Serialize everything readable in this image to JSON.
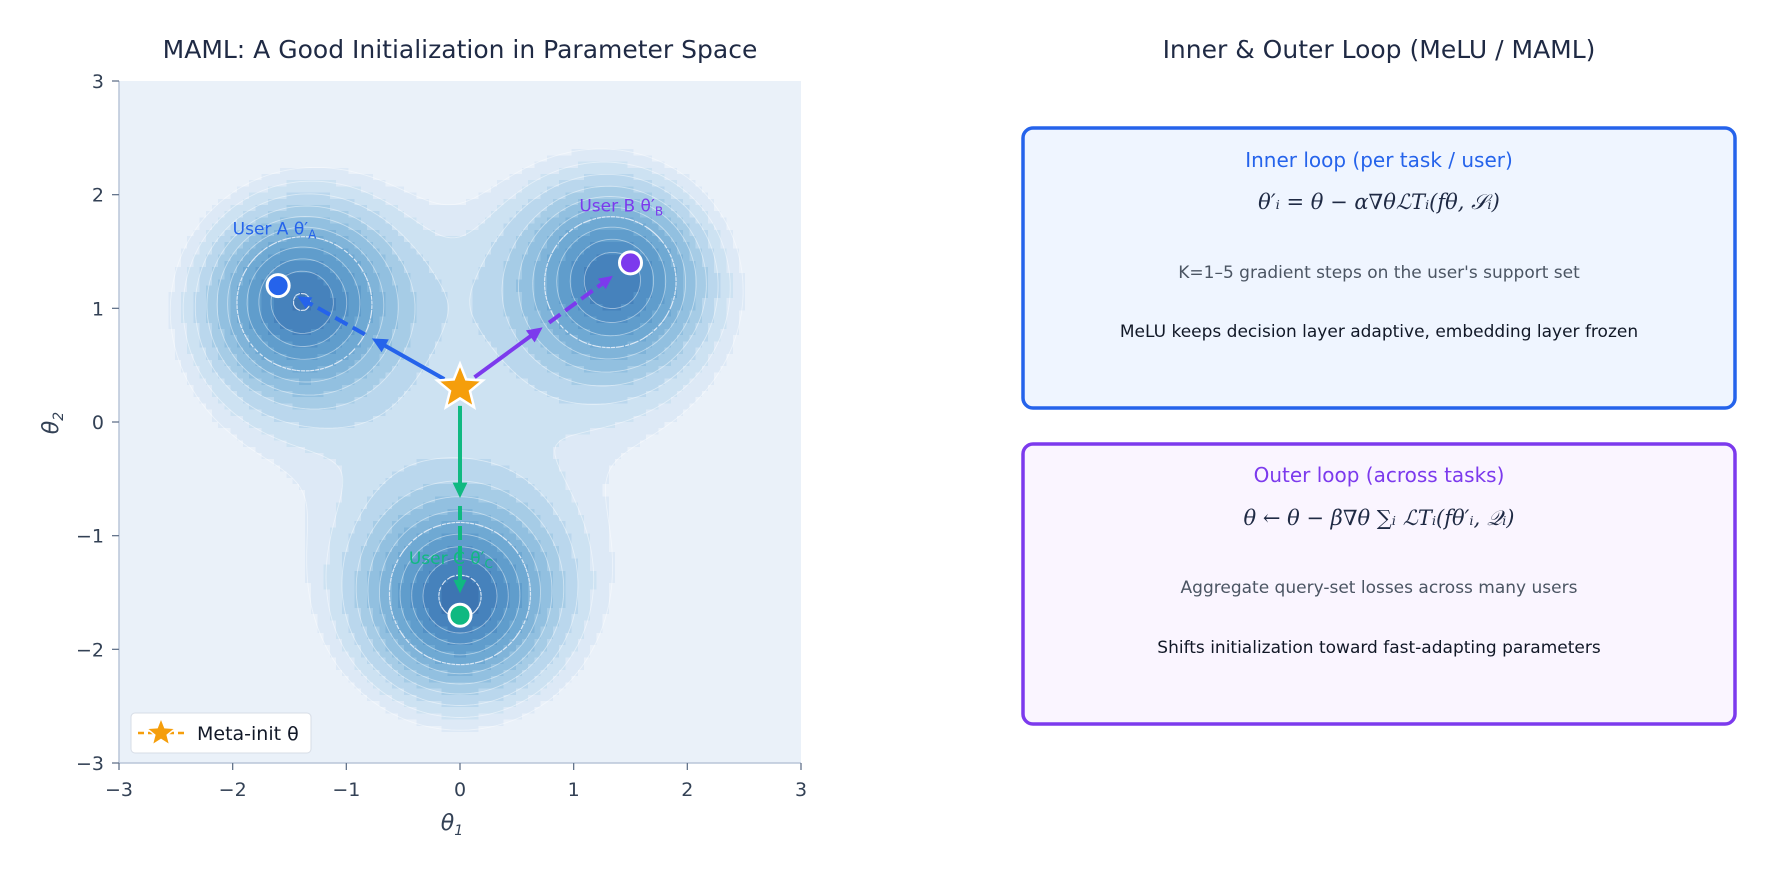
{
  "left_panel": {
    "title": "MAML: A Good Initialization in Parameter Space",
    "xlabel_base": "θ",
    "xlabel_sub": "1",
    "ylabel_base": "θ",
    "ylabel_sub": "2",
    "x_ticks": [
      "−3",
      "−2",
      "−1",
      "0",
      "1",
      "2",
      "3"
    ],
    "y_ticks": [
      "3",
      "2",
      "1",
      "0",
      "−1",
      "−2",
      "−3"
    ],
    "legend_label": "Meta-init  θ",
    "point_labels": {
      "a": {
        "text": "User A  θ′",
        "sub": "A"
      },
      "b": {
        "text": "User B  θ′",
        "sub": "B"
      },
      "c": {
        "text": "User C  θ′",
        "sub": "C"
      }
    }
  },
  "chart_data": {
    "type": "scatter",
    "xlim": [
      -3,
      3
    ],
    "ylim": [
      -3,
      3
    ],
    "grid": false,
    "legend_position": "bottom-left",
    "meta_init": {
      "x": 0.0,
      "y": 0.3
    },
    "task_optima": [
      {
        "id": "a",
        "x": -1.6,
        "y": 1.2,
        "color": "#2563eb"
      },
      {
        "id": "b",
        "x": 1.5,
        "y": 1.4,
        "color": "#7c3aed"
      },
      {
        "id": "c",
        "x": 0.0,
        "y": -1.7,
        "color": "#10b981"
      }
    ],
    "basin_centers": [
      {
        "x": -1.45,
        "y": 1.1
      },
      {
        "x": 1.4,
        "y": 1.3
      },
      {
        "x": 0.0,
        "y": -1.6
      }
    ]
  },
  "right_panel": {
    "title": "Inner & Outer Loop (MeLU / MAML)",
    "inner": {
      "title": "Inner loop  (per task / user)",
      "formula": "θ′ᵢ = θ − α∇θℒTᵢ(fθ, 𝒮ᵢ)",
      "desc": "K=1–5 gradient steps on the user's support set",
      "note": "MeLU keeps decision layer adaptive, embedding layer frozen"
    },
    "outer": {
      "title": "Outer loop  (across tasks)",
      "formula": "θ ← θ − β∇θ ∑ᵢ ℒTᵢ(fθ′ᵢ, 𝒬ᵢ)",
      "desc": "Aggregate query-set losses across many users",
      "note": "Shifts initialization toward fast-adapting parameters"
    }
  },
  "colors": {
    "inner": "#2563eb",
    "outer": "#7c3aed",
    "star": "#f59e0b",
    "user_a": "#2563eb",
    "user_b": "#7c3aed",
    "user_c": "#10b981"
  }
}
